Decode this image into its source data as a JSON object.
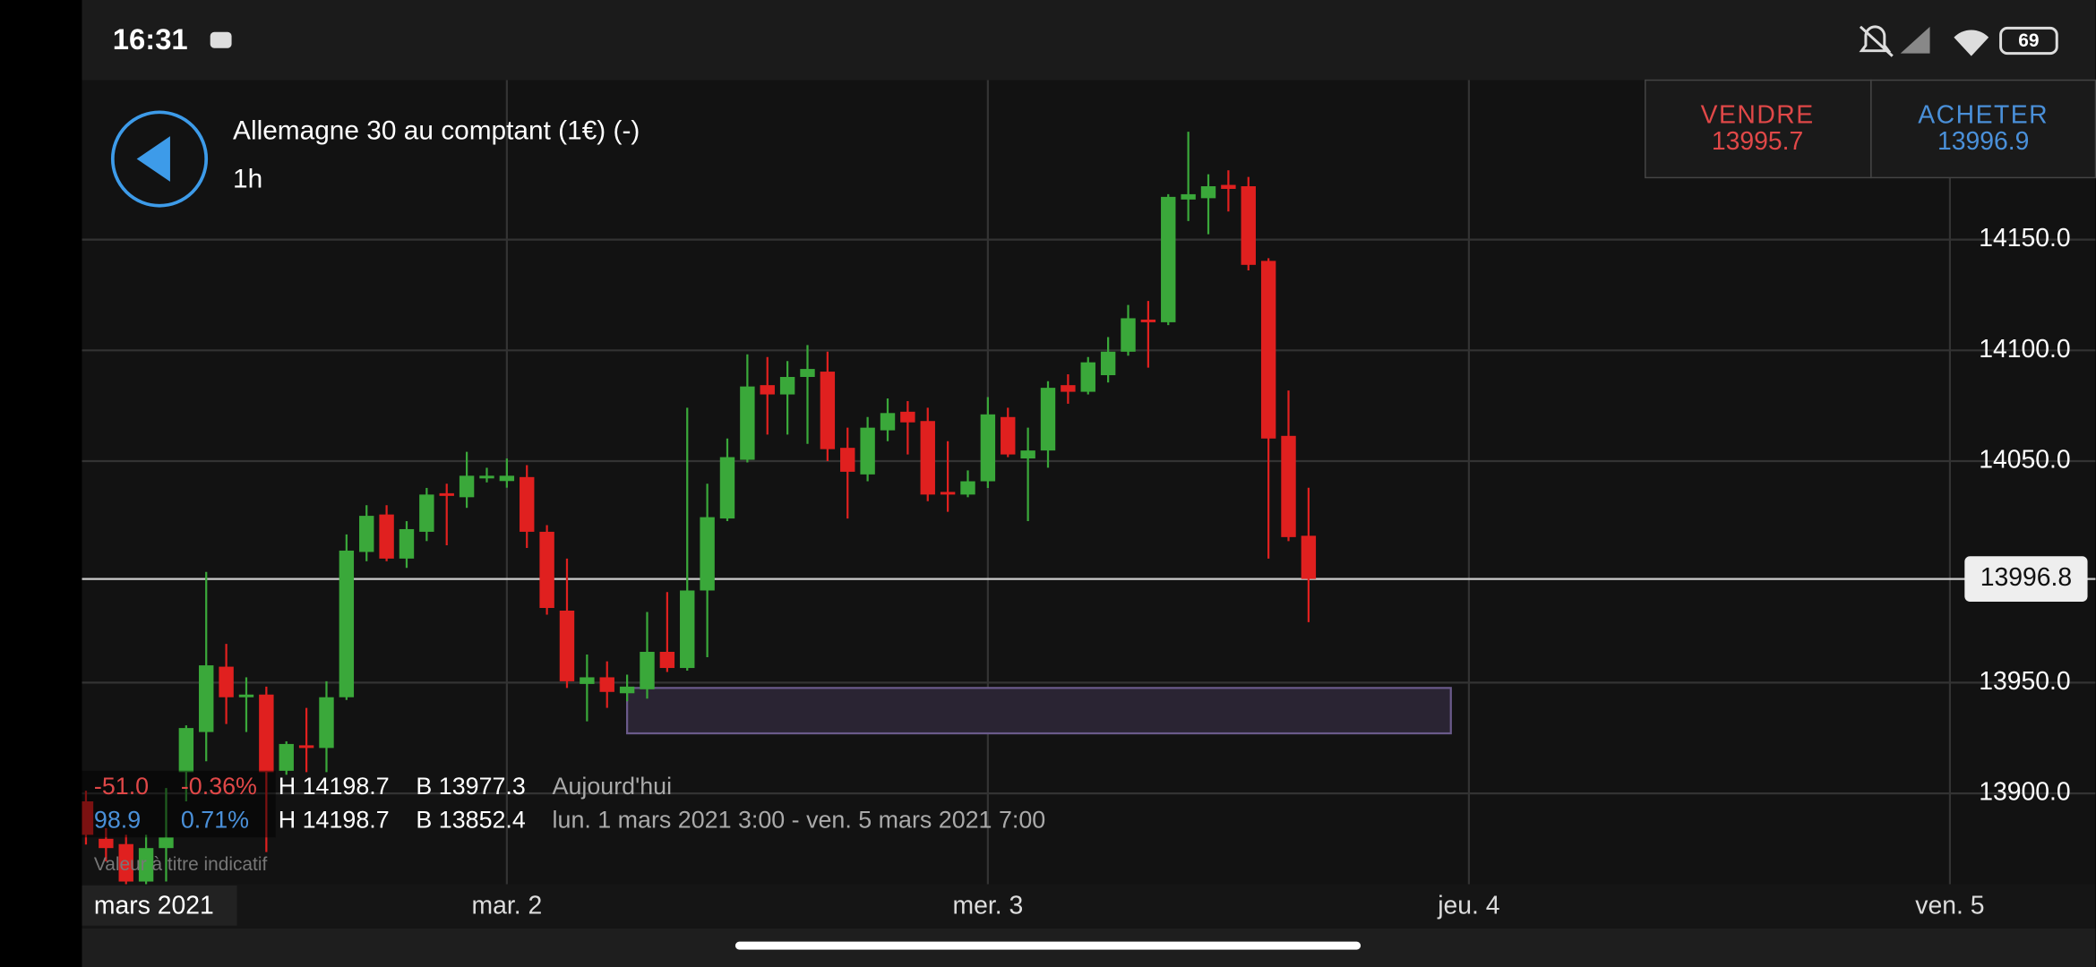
{
  "status_bar": {
    "time": "16:31",
    "battery": "69"
  },
  "header": {
    "title": "Allemagne 30 au comptant (1€) (-)",
    "interval": "1h"
  },
  "trade": {
    "sell_label": "VENDRE",
    "sell_price": "13995.7",
    "buy_label": "ACHETER",
    "buy_price": "13996.9"
  },
  "info": {
    "rows": [
      [
        "-51.0",
        "-0.36%",
        "H 14198.7",
        "B 13977.3",
        "Aujourd'hui"
      ],
      [
        "98.9",
        "0.71%",
        "H 14198.7",
        "B 13852.4",
        "lun. 1 mars 2021 3:00 - ven. 5 mars 2021 7:00"
      ]
    ],
    "note": "Valeur à titre indicatif"
  },
  "period_label": "mars 2021",
  "chart_data": {
    "type": "candlestick",
    "categories": [
      null,
      null,
      null,
      null,
      null,
      null,
      null,
      null,
      null,
      null,
      null,
      null,
      null,
      null,
      null,
      null,
      null,
      null,
      null,
      null,
      null,
      null,
      null,
      null,
      null,
      null,
      null,
      null,
      null,
      null,
      null,
      null,
      null,
      null,
      null,
      null,
      null,
      null,
      null,
      null,
      null,
      null,
      null,
      null,
      null,
      null,
      null,
      null,
      null,
      null,
      null,
      null,
      null,
      null,
      null,
      null,
      null,
      null,
      null,
      null,
      null,
      null
    ],
    "open": [
      13896.4,
      13879.5,
      13877.1,
      13860.2,
      13875.3,
      13909.6,
      13927.7,
      13957.2,
      13943.4,
      13944.6,
      13910.2,
      13921.7,
      13920.5,
      13943.4,
      14009.0,
      14025.9,
      14006.0,
      14018.1,
      14035.5,
      14033.7,
      14042.2,
      14041.0,
      14042.8,
      14018.1,
      13982.5,
      13949.4,
      13952.4,
      13945.2,
      13947.0,
      13963.9,
      13956.6,
      13991.6,
      14024.1,
      14050.6,
      14084.3,
      14080.1,
      14088.0,
      14090.4,
      14056.0,
      14044.0,
      14063.9,
      14072.3,
      14068.1,
      14036.1,
      14034.9,
      14040.9,
      14069.9,
      14051.2,
      14054.8,
      14084.3,
      14081.3,
      14088.8,
      14099.4,
      14113.9,
      14112.7,
      14168.1,
      14168.7,
      14174.7,
      14174.1,
      14140.4,
      14061.4,
      14016.3
    ],
    "high": [
      13901.2,
      13884.3,
      13881.3,
      13881.3,
      13902.4,
      13930.7,
      14000.0,
      13967.5,
      13952.4,
      13948.2,
      13923.5,
      13938.6,
      13950.6,
      14016.9,
      14030.1,
      14030.1,
      14022.9,
      14037.9,
      14039.8,
      14054.2,
      14047.0,
      14051.2,
      14048.2,
      14021.1,
      14006.0,
      13962.7,
      13959.6,
      13953.6,
      13981.9,
      13990.9,
      14074.1,
      14039.8,
      14060.2,
      14098.2,
      14097.0,
      14095.2,
      14102.4,
      14099.4,
      14065.1,
      14069.9,
      14078.3,
      14077.1,
      14074.1,
      14059.0,
      14045.8,
      14078.9,
      14074.1,
      14065.1,
      14086.1,
      14089.2,
      14097.0,
      14106.0,
      14120.5,
      14122.3,
      14170.5,
      14198.7,
      14179.5,
      14181.3,
      14178.3,
      14141.6,
      14081.9,
      14038.0
    ],
    "low": [
      13876.9,
      13869.3,
      13859.0,
      13859.0,
      13860.2,
      13896.4,
      13914.5,
      13931.3,
      13927.7,
      13873.5,
      13908.4,
      13909.6,
      13909.6,
      13942.2,
      14004.8,
      14004.8,
      14001.8,
      14013.9,
      14012.0,
      14028.9,
      14040.4,
      14038.0,
      14010.8,
      13980.7,
      13947.6,
      13932.5,
      13938.6,
      13941.6,
      13942.8,
      13954.8,
      13955.4,
      13961.5,
      14022.9,
      14049.4,
      14062.0,
      14062.0,
      14057.8,
      14050.0,
      14024.1,
      14040.9,
      14059.0,
      14053.0,
      14031.9,
      14027.1,
      14033.7,
      14037.9,
      14051.8,
      14022.9,
      14047.0,
      14075.9,
      14080.1,
      14085.5,
      14097.6,
      14092.2,
      14111.4,
      14158.4,
      14152.4,
      14162.7,
      14136.1,
      14006.0,
      14013.9,
      13977.3
    ],
    "close": [
      13881.3,
      13875.3,
      13860.2,
      13875.3,
      13880.1,
      13929.5,
      13957.8,
      13943.4,
      13944.6,
      13909.6,
      13922.3,
      13920.5,
      13943.4,
      14009.6,
      14025.3,
      14006.0,
      14019.3,
      14034.9,
      14034.3,
      14043.4,
      14043.4,
      14043.4,
      14018.1,
      13983.7,
      13950.6,
      13952.4,
      13945.8,
      13948.2,
      13963.9,
      13956.6,
      13991.6,
      14024.7,
      14051.8,
      14083.7,
      14080.1,
      14088.0,
      14091.6,
      14055.4,
      14045.2,
      14065.1,
      14071.7,
      14067.5,
      14034.9,
      14034.9,
      14040.9,
      14071.1,
      14053.0,
      14054.8,
      14083.1,
      14081.3,
      14094.6,
      14099.4,
      14114.5,
      14112.7,
      14169.3,
      14170.5,
      14174.1,
      14172.9,
      14138.6,
      14060.2,
      14015.7,
      13996.8
    ],
    "up_color": "#3aa83a",
    "down_color": "#e0201f",
    "ylim": [
      13859,
      14222
    ],
    "yticks": [
      {
        "value": 13900,
        "label": "13900.0"
      },
      {
        "value": 13950,
        "label": "13950.0"
      },
      {
        "value": 14050,
        "label": "14050.0"
      },
      {
        "value": 14100,
        "label": "14100.0"
      },
      {
        "value": 14150,
        "label": "14150.0"
      }
    ],
    "xticks": [
      {
        "value": 21,
        "label": "mar. 2"
      },
      {
        "value": 45,
        "label": "mer. 3"
      },
      {
        "value": 69,
        "label": "jeu. 4"
      },
      {
        "value": 93,
        "label": "ven. 5"
      }
    ],
    "last_price": 13996.8,
    "zone": {
      "x": [
        27,
        68.1
      ],
      "y": [
        13927.1,
        13947.6
      ]
    },
    "grid": true
  }
}
